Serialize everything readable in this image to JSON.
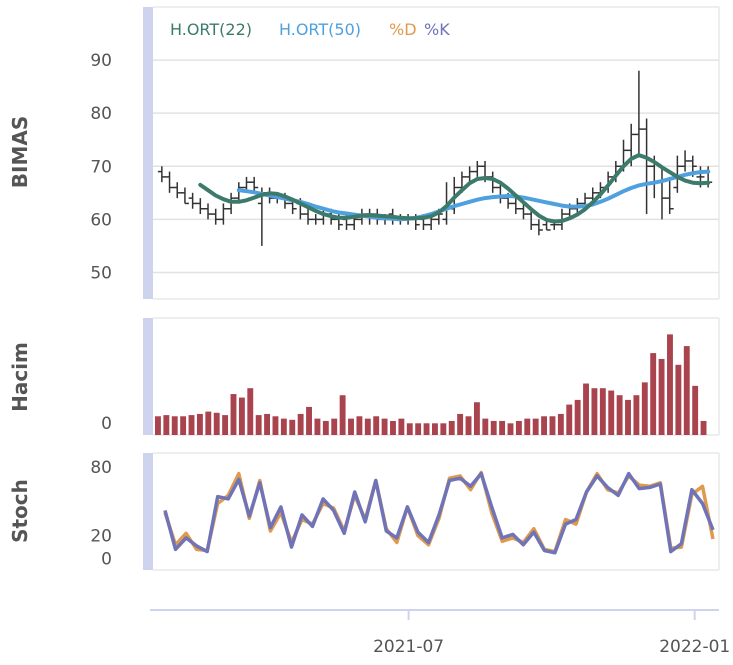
{
  "chart_data": {
    "type": "line",
    "x_ticks": [
      "2021-07",
      "2022-01"
    ],
    "x_tick_positions": [
      0.4545,
      0.9573
    ],
    "panels": {
      "price": {
        "ylabel": "BIMAS",
        "ylim": [
          45,
          100
        ],
        "yticks": [
          50,
          60,
          70,
          80,
          90
        ],
        "legend": [
          {
            "label": "H.ORT(22)",
            "color": "#3c7a6b"
          },
          {
            "label": "H.ORT(50)",
            "color": "#4fa0df"
          },
          {
            "label": "%D",
            "color": "#e09a4c"
          },
          {
            "label": "%K",
            "color": "#6f73b8"
          }
        ],
        "candles": [
          [
            69,
            68,
            70,
            67
          ],
          [
            68,
            66,
            69,
            65
          ],
          [
            66,
            65,
            67,
            64
          ],
          [
            65,
            63,
            66,
            63
          ],
          [
            64,
            63,
            65,
            62
          ],
          [
            63,
            62,
            64,
            61
          ],
          [
            62,
            61,
            63,
            60
          ],
          [
            61,
            60,
            62,
            59
          ],
          [
            60,
            62,
            63,
            59
          ],
          [
            62,
            64,
            65,
            61
          ],
          [
            64,
            66,
            67,
            63
          ],
          [
            66,
            67,
            68,
            65
          ],
          [
            67,
            66,
            68,
            65
          ],
          [
            63,
            65,
            66,
            55
          ],
          [
            65,
            64,
            66,
            63
          ],
          [
            64,
            64,
            65,
            63
          ],
          [
            64,
            63,
            65,
            62
          ],
          [
            63,
            62,
            64,
            61
          ],
          [
            63,
            61,
            64,
            60
          ],
          [
            61,
            60,
            62,
            59
          ],
          [
            60,
            60,
            61,
            59
          ],
          [
            60,
            61,
            62,
            59
          ],
          [
            61,
            60,
            62,
            59
          ],
          [
            60,
            59,
            61,
            58
          ],
          [
            60,
            59,
            61,
            58
          ],
          [
            59,
            60,
            61,
            58
          ],
          [
            60,
            61,
            62,
            59
          ],
          [
            61,
            61,
            62,
            59
          ],
          [
            61,
            60,
            62,
            59
          ],
          [
            60,
            60,
            61,
            59
          ],
          [
            61,
            60,
            62,
            59
          ],
          [
            60,
            60,
            61,
            59
          ],
          [
            60,
            60,
            61,
            59
          ],
          [
            60,
            59,
            61,
            58
          ],
          [
            60,
            59,
            61,
            58
          ],
          [
            59,
            60,
            61,
            58
          ],
          [
            60,
            61,
            62,
            59
          ],
          [
            60,
            62,
            67,
            59
          ],
          [
            62,
            66,
            68,
            61
          ],
          [
            66,
            68,
            69,
            65
          ],
          [
            68,
            69,
            70,
            67
          ],
          [
            69,
            70,
            71,
            68
          ],
          [
            70,
            68,
            71,
            67
          ],
          [
            68,
            66,
            69,
            65
          ],
          [
            66,
            64,
            67,
            63
          ],
          [
            64,
            63,
            65,
            62
          ],
          [
            63,
            62,
            64,
            61
          ],
          [
            62,
            61,
            63,
            60
          ],
          [
            61,
            59,
            62,
            58
          ],
          [
            59,
            58,
            60,
            57
          ],
          [
            59,
            58,
            60,
            58
          ],
          [
            59,
            59,
            60,
            58
          ],
          [
            59,
            61,
            62,
            58
          ],
          [
            61,
            62,
            63,
            60
          ],
          [
            62,
            63,
            64,
            61
          ],
          [
            63,
            64,
            65,
            62
          ],
          [
            64,
            65,
            66,
            63
          ],
          [
            65,
            66,
            67,
            64
          ],
          [
            66,
            68,
            69,
            65
          ],
          [
            68,
            70,
            71,
            67
          ],
          [
            70,
            73,
            75,
            69
          ],
          [
            73,
            76,
            78,
            70
          ],
          [
            76,
            77,
            88,
            72
          ],
          [
            77,
            70,
            79,
            61
          ],
          [
            70,
            67,
            72,
            64
          ],
          [
            67,
            64,
            70,
            60
          ],
          [
            64,
            62,
            68,
            61
          ],
          [
            66,
            70,
            72,
            65
          ],
          [
            70,
            71,
            73,
            69
          ],
          [
            71,
            70,
            72,
            68
          ],
          [
            68,
            68,
            70,
            66
          ],
          [
            69,
            67,
            70,
            66
          ]
        ],
        "ma22": [
          null,
          null,
          null,
          null,
          null,
          66.5,
          65.5,
          64.5,
          63.8,
          63.3,
          63.3,
          63.6,
          64.1,
          64.6,
          64.9,
          64.8,
          64.3,
          63.7,
          63.0,
          62.3,
          61.6,
          61.0,
          60.6,
          60.3,
          60.3,
          60.5,
          60.7,
          60.8,
          60.7,
          60.6,
          60.5,
          60.3,
          60.2,
          60.2,
          60.3,
          60.6,
          61.3,
          62.5,
          64.1,
          65.5,
          66.8,
          67.6,
          67.8,
          67.6,
          66.9,
          65.8,
          64.5,
          63.2,
          61.9,
          60.7,
          59.9,
          59.6,
          59.7,
          60.2,
          60.9,
          61.9,
          63.2,
          64.7,
          66.4,
          68.2,
          70.0,
          71.4,
          72.1,
          71.6,
          70.8,
          69.8,
          68.9,
          68.0,
          67.3,
          66.9,
          66.8,
          66.9
        ],
        "ma50": [
          null,
          null,
          null,
          null,
          null,
          null,
          null,
          null,
          null,
          null,
          65.5,
          65.3,
          65.1,
          64.8,
          64.5,
          64.2,
          63.9,
          63.6,
          63.3,
          62.9,
          62.4,
          62.0,
          61.6,
          61.3,
          61.1,
          60.9,
          60.7,
          60.5,
          60.3,
          60.2,
          60.1,
          60.0,
          60.1,
          60.3,
          60.6,
          61.0,
          61.5,
          62.0,
          62.5,
          62.9,
          63.3,
          63.7,
          64.0,
          64.2,
          64.3,
          64.4,
          64.3,
          64.1,
          63.8,
          63.5,
          63.2,
          62.9,
          62.6,
          62.4,
          62.4,
          62.5,
          62.8,
          63.3,
          63.9,
          64.6,
          65.3,
          65.9,
          66.4,
          66.7,
          66.9,
          67.2,
          67.6,
          68.0,
          68.4,
          68.7,
          68.9,
          69.0
        ]
      },
      "volume": {
        "ylabel": "Hacim",
        "ytick_label": "0",
        "ymax": 100,
        "values": [
          16,
          17,
          16,
          16,
          17,
          18,
          20,
          19,
          17,
          35,
          32,
          40,
          17,
          18,
          16,
          14,
          13,
          18,
          24,
          14,
          12,
          14,
          34,
          14,
          16,
          14,
          16,
          14,
          12,
          14,
          10,
          10,
          10,
          10,
          10,
          12,
          18,
          16,
          28,
          14,
          12,
          12,
          10,
          12,
          14,
          14,
          16,
          16,
          18,
          26,
          30,
          44,
          40,
          40,
          38,
          34,
          30,
          34,
          45,
          70,
          65,
          86,
          60,
          76,
          42,
          12
        ]
      },
      "stoch": {
        "ylabel": "Stoch",
        "yticks": [
          0,
          20,
          80
        ],
        "ylim": [
          -10,
          92
        ],
        "k": [
          42,
          8,
          18,
          11,
          6,
          54,
          52,
          69,
          37,
          66,
          27,
          45,
          10,
          38,
          28,
          52,
          42,
          22,
          58,
          32,
          68,
          24,
          18,
          45,
          23,
          14,
          38,
          68,
          70,
          63,
          74,
          45,
          18,
          21,
          12,
          23,
          7,
          5,
          30,
          34,
          58,
          72,
          62,
          55,
          74,
          61,
          62,
          65,
          6,
          13,
          60,
          48,
          25
        ],
        "d": [
          40,
          12,
          22,
          8,
          7,
          48,
          55,
          74,
          35,
          68,
          24,
          40,
          14,
          34,
          30,
          48,
          44,
          24,
          55,
          34,
          68,
          26,
          14,
          45,
          20,
          12,
          35,
          70,
          72,
          60,
          75,
          40,
          15,
          18,
          14,
          26,
          8,
          6,
          34,
          30,
          58,
          74,
          60,
          57,
          72,
          64,
          63,
          66,
          9,
          10,
          56,
          63,
          17
        ]
      }
    }
  }
}
